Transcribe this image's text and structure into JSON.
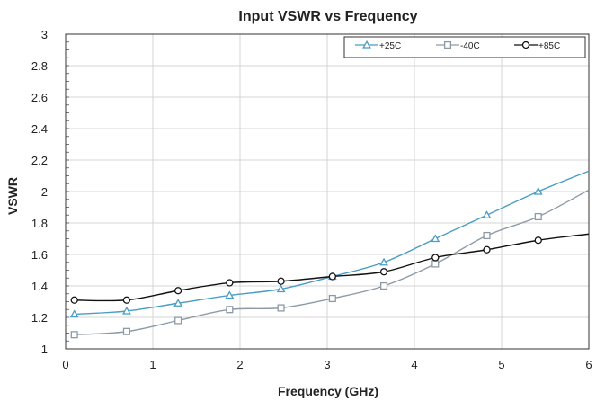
{
  "chart_data": {
    "type": "line",
    "title": "Input VSWR vs Frequency",
    "xlabel": "Frequency (GHz)",
    "ylabel": "VSWR",
    "xlim": [
      0,
      6
    ],
    "ylim": [
      1,
      3
    ],
    "xticks": [
      "0",
      "1",
      "2",
      "3",
      "4",
      "5",
      "6"
    ],
    "yticks": [
      "1",
      "1.2",
      "1.4",
      "1.6",
      "1.8",
      "2",
      "2.2",
      "2.4",
      "2.6",
      "2.8",
      "3"
    ],
    "grid": true,
    "legend_position": "top-right",
    "series": [
      {
        "name": "+25C",
        "color": "#4a9cc2",
        "marker": "triangle",
        "x": [
          0.1,
          0.7,
          1.29,
          1.88,
          2.47,
          3.06,
          3.65,
          4.24,
          4.83,
          5.42,
          6.0
        ],
        "y": [
          1.22,
          1.24,
          1.29,
          1.34,
          1.38,
          1.46,
          1.55,
          1.7,
          1.85,
          2.0,
          2.13
        ]
      },
      {
        "name": "-40C",
        "color": "#8d9aa6",
        "marker": "square",
        "x": [
          0.1,
          0.7,
          1.29,
          1.88,
          2.47,
          3.06,
          3.65,
          4.24,
          4.83,
          5.42,
          6.0
        ],
        "y": [
          1.09,
          1.11,
          1.18,
          1.25,
          1.26,
          1.32,
          1.4,
          1.54,
          1.72,
          1.84,
          2.01
        ]
      },
      {
        "name": "+85C",
        "color": "#111111",
        "marker": "circle",
        "x": [
          0.1,
          0.7,
          1.29,
          1.88,
          2.47,
          3.06,
          3.65,
          4.24,
          4.83,
          5.42,
          6.0
        ],
        "y": [
          1.31,
          1.31,
          1.37,
          1.42,
          1.43,
          1.46,
          1.49,
          1.58,
          1.63,
          1.69,
          1.73
        ]
      }
    ]
  }
}
